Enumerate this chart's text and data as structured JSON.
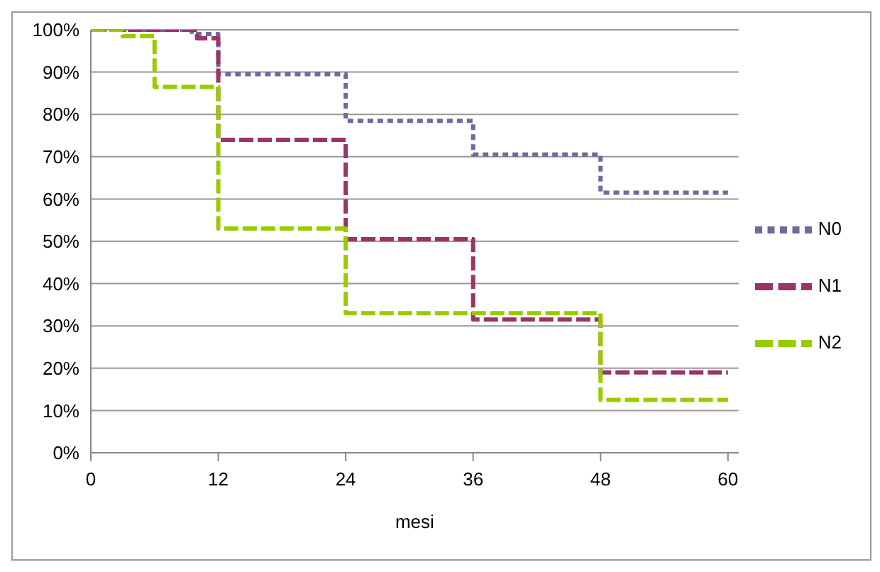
{
  "chart_data": {
    "type": "step",
    "xlabel": "mesi",
    "xlim": [
      0,
      61
    ],
    "xticks": [
      0,
      12,
      24,
      36,
      48,
      60
    ],
    "ylim": [
      0,
      100
    ],
    "yticks": [
      {
        "value": 0,
        "label": "0%"
      },
      {
        "value": 10,
        "label": "10%"
      },
      {
        "value": 20,
        "label": "20%"
      },
      {
        "value": 30,
        "label": "30%"
      },
      {
        "value": 40,
        "label": "40%"
      },
      {
        "value": 50,
        "label": "50%"
      },
      {
        "value": 60,
        "label": "60%"
      },
      {
        "value": 70,
        "label": "70%"
      },
      {
        "value": 80,
        "label": "80%"
      },
      {
        "value": 90,
        "label": "90%"
      },
      {
        "value": 100,
        "label": "100%"
      }
    ],
    "grid": "y",
    "legend": "right",
    "marker": "none",
    "series": [
      {
        "name": "N0",
        "color": "#6b6b9e",
        "line_style": "dotted",
        "x": [
          0,
          9.5,
          12,
          24,
          36,
          48,
          60
        ],
        "values": [
          100,
          99,
          89.5,
          78.5,
          70.5,
          61.5,
          61.5
        ]
      },
      {
        "name": "N1",
        "color": "#9b3466",
        "line_style": "dashed",
        "x": [
          0,
          10,
          12,
          24,
          36,
          48,
          60
        ],
        "values": [
          100,
          98,
          74,
          50.5,
          31.5,
          19,
          19
        ]
      },
      {
        "name": "N2",
        "color": "#99cc00",
        "line_style": "dashed",
        "x": [
          0,
          3,
          6,
          12,
          24,
          48,
          60
        ],
        "values": [
          100,
          98.5,
          86.5,
          53,
          33,
          12.5,
          12.5
        ]
      }
    ]
  }
}
